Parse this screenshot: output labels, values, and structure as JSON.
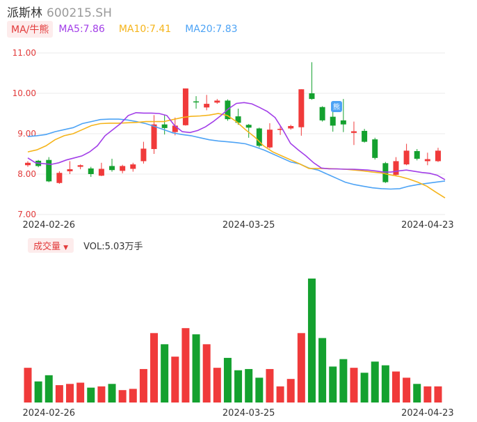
{
  "header": {
    "name": "派斯林",
    "code": "600215.SH"
  },
  "ma_legend": {
    "toggle_label": "MA/牛熊",
    "items": [
      {
        "label": "MA5:7.86",
        "color": "#a23ee8"
      },
      {
        "label": "MA10:7.41",
        "color": "#f5b41a"
      },
      {
        "label": "MA20:7.83",
        "color": "#4da3f5"
      }
    ]
  },
  "volume_legend": {
    "toggle_label": "成交量",
    "text": "VOL:5.03万手"
  },
  "bear_badge": "熊",
  "colors": {
    "up": "#f03a3a",
    "down": "#14a12f",
    "ma5": "#a23ee8",
    "ma10": "#f5b41a",
    "ma20": "#4da3f5"
  },
  "chart_data": [
    {
      "type": "candlestick",
      "ylim": [
        7.0,
        11.0
      ],
      "y_ticks": [
        "11.00",
        "10.00",
        "9.00",
        "8.00",
        "7.00"
      ],
      "x_ticks": [
        "2024-02-26",
        "2024-03-25",
        "2024-04-23"
      ],
      "candles": [
        {
          "open": 8.22,
          "close": 8.28,
          "high": 8.32,
          "low": 8.18
        },
        {
          "open": 8.33,
          "close": 8.2,
          "high": 8.35,
          "low": 8.17
        },
        {
          "open": 8.35,
          "close": 7.82,
          "high": 8.42,
          "low": 7.8
        },
        {
          "open": 7.78,
          "close": 8.03,
          "high": 8.07,
          "low": 7.76
        },
        {
          "open": 8.07,
          "close": 8.12,
          "high": 8.32,
          "low": 8.0
        },
        {
          "open": 8.18,
          "close": 8.22,
          "high": 8.24,
          "low": 8.12
        },
        {
          "open": 8.14,
          "close": 8.0,
          "high": 8.18,
          "low": 7.93
        },
        {
          "open": 7.96,
          "close": 8.13,
          "high": 8.28,
          "low": 7.95
        },
        {
          "open": 8.2,
          "close": 8.1,
          "high": 8.38,
          "low": 8.06
        },
        {
          "open": 8.08,
          "close": 8.2,
          "high": 8.23,
          "low": 8.02
        },
        {
          "open": 8.13,
          "close": 8.24,
          "high": 8.28,
          "low": 8.06
        },
        {
          "open": 8.32,
          "close": 8.63,
          "high": 8.8,
          "low": 8.26
        },
        {
          "open": 8.62,
          "close": 9.23,
          "high": 9.46,
          "low": 8.5
        },
        {
          "open": 9.23,
          "close": 9.14,
          "high": 9.46,
          "low": 8.98
        },
        {
          "open": 9.04,
          "close": 9.2,
          "high": 9.4,
          "low": 8.96
        },
        {
          "open": 9.21,
          "close": 10.12,
          "high": 10.12,
          "low": 9.2
        },
        {
          "open": 9.8,
          "close": 9.78,
          "high": 9.93,
          "low": 9.62
        },
        {
          "open": 9.65,
          "close": 9.74,
          "high": 9.96,
          "low": 9.58
        },
        {
          "open": 9.77,
          "close": 9.82,
          "high": 9.86,
          "low": 9.74
        },
        {
          "open": 9.82,
          "close": 9.36,
          "high": 9.85,
          "low": 9.32
        },
        {
          "open": 9.43,
          "close": 9.27,
          "high": 9.62,
          "low": 9.22
        },
        {
          "open": 9.22,
          "close": 9.15,
          "high": 9.24,
          "low": 8.9
        },
        {
          "open": 9.13,
          "close": 8.7,
          "high": 9.15,
          "low": 8.66
        },
        {
          "open": 8.66,
          "close": 9.1,
          "high": 9.26,
          "low": 8.63
        },
        {
          "open": 9.1,
          "close": 9.12,
          "high": 9.18,
          "low": 8.97
        },
        {
          "open": 9.13,
          "close": 9.19,
          "high": 9.22,
          "low": 9.1
        },
        {
          "open": 9.16,
          "close": 10.1,
          "high": 10.1,
          "low": 8.95
        },
        {
          "open": 10.0,
          "close": 9.86,
          "high": 10.77,
          "low": 9.84
        },
        {
          "open": 9.66,
          "close": 9.33,
          "high": 9.68,
          "low": 9.3
        },
        {
          "open": 9.42,
          "close": 9.2,
          "high": 9.65,
          "low": 9.05
        },
        {
          "open": 9.33,
          "close": 9.23,
          "high": 9.86,
          "low": 9.04
        },
        {
          "open": 9.02,
          "close": 9.06,
          "high": 9.3,
          "low": 8.72
        },
        {
          "open": 9.07,
          "close": 8.8,
          "high": 9.12,
          "low": 8.78
        },
        {
          "open": 8.86,
          "close": 8.4,
          "high": 8.9,
          "low": 8.36
        },
        {
          "open": 8.27,
          "close": 7.8,
          "high": 8.3,
          "low": 7.78
        },
        {
          "open": 7.98,
          "close": 8.32,
          "high": 8.42,
          "low": 7.96
        },
        {
          "open": 8.24,
          "close": 8.58,
          "high": 8.75,
          "low": 8.22
        },
        {
          "open": 8.57,
          "close": 8.38,
          "high": 8.62,
          "low": 8.34
        },
        {
          "open": 8.32,
          "close": 8.37,
          "high": 8.53,
          "low": 8.22
        },
        {
          "open": 8.32,
          "close": 8.58,
          "high": 8.65,
          "low": 8.3
        }
      ],
      "ma5": [
        8.4,
        8.28,
        8.26,
        8.24,
        8.28,
        8.35,
        8.4,
        8.45,
        8.55,
        8.7,
        8.95,
        9.1,
        9.25,
        9.45,
        9.52,
        9.51,
        9.51,
        9.5,
        9.45,
        9.2,
        9.05,
        9.03,
        9.08,
        9.17,
        9.3,
        9.45,
        9.62,
        9.75,
        9.77,
        9.74,
        9.65,
        9.55,
        9.4,
        9.1,
        8.76,
        8.6,
        8.45,
        8.28,
        8.15,
        8.13,
        8.13,
        8.12,
        8.12,
        8.11,
        8.1,
        8.08,
        8.05,
        8.05,
        8.08,
        8.1,
        8.07,
        8.04,
        8.02,
        7.97,
        7.86
      ],
      "ma10": [
        8.55,
        8.6,
        8.7,
        8.85,
        8.95,
        9.0,
        9.1,
        9.2,
        9.25,
        9.26,
        9.26,
        9.27,
        9.28,
        9.3,
        9.3,
        9.3,
        9.35,
        9.4,
        9.43,
        9.44,
        9.46,
        9.5,
        9.45,
        9.3,
        9.1,
        8.92,
        8.7,
        8.55,
        8.45,
        8.35,
        8.25,
        8.14,
        8.14,
        8.14,
        8.13,
        8.12,
        8.1,
        8.08,
        8.05,
        8.03,
        7.98,
        7.94,
        7.88,
        7.8,
        7.7,
        7.55,
        7.41
      ],
      "ma20": [
        8.93,
        8.95,
        8.98,
        9.05,
        9.1,
        9.15,
        9.25,
        9.3,
        9.35,
        9.36,
        9.36,
        9.34,
        9.3,
        9.25,
        9.18,
        9.1,
        9.02,
        8.98,
        8.95,
        8.9,
        8.85,
        8.82,
        8.8,
        8.78,
        8.75,
        8.68,
        8.6,
        8.5,
        8.4,
        8.3,
        8.25,
        8.15,
        8.1,
        8.0,
        7.9,
        7.8,
        7.74,
        7.7,
        7.66,
        7.64,
        7.63,
        7.64,
        7.7,
        7.74,
        7.77,
        7.8,
        7.83
      ]
    },
    {
      "type": "bar",
      "series_name": "成交量",
      "x_ticks": [
        "2024-02-26",
        "2024-03-25",
        "2024-04-23"
      ],
      "values": [
        28,
        17,
        22,
        14,
        15,
        16,
        12,
        13,
        15,
        10,
        11,
        27,
        56,
        47,
        37,
        60,
        55,
        47,
        28,
        36,
        26,
        27,
        20,
        27,
        13,
        19,
        56,
        100,
        52,
        29,
        35,
        28,
        24,
        33,
        30,
        25,
        20,
        15,
        13,
        13
      ]
    }
  ]
}
